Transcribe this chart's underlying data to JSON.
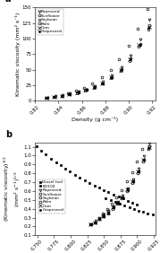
{
  "panel_a": {
    "title": "a",
    "xlabel": "Density (g cm⁻¹)",
    "ylabel": "Kinematic viscosity (mm² s⁻¹)",
    "xlim": [
      0.82,
      0.923
    ],
    "ylim": [
      0,
      150
    ],
    "yticks": [
      0,
      25,
      50,
      75,
      100,
      125,
      150
    ],
    "xticks": [
      0.82,
      0.84,
      0.86,
      0.88,
      0.9,
      0.92
    ],
    "xtick_labels": [
      "0.82",
      "0.84",
      "0.86",
      "0.88",
      "0.90",
      "0.92"
    ],
    "series": [
      {
        "name": "Rapeseed",
        "marker": "v",
        "fillstyle": "none",
        "data_x": [
          0.8305,
          0.837,
          0.8435,
          0.85,
          0.857,
          0.864,
          0.871,
          0.878,
          0.886,
          0.894,
          0.902,
          0.91,
          0.918
        ],
        "data_y": [
          5,
          7,
          9,
          11,
          14,
          18,
          23,
          30,
          40,
          54,
          72,
          98,
          130
        ]
      },
      {
        "name": "Sunflower",
        "marker": "o",
        "fillstyle": "none",
        "data_x": [
          0.8305,
          0.837,
          0.8435,
          0.85,
          0.857,
          0.864,
          0.871,
          0.878,
          0.886,
          0.894,
          0.902,
          0.91,
          0.918
        ],
        "data_y": [
          5,
          6,
          8,
          10,
          13,
          17,
          22,
          28,
          38,
          51,
          68,
          92,
          122
        ]
      },
      {
        "name": "Soybean",
        "marker": "s",
        "fillstyle": "none",
        "data_x": [
          0.8295,
          0.836,
          0.8425,
          0.849,
          0.856,
          0.863,
          0.87,
          0.877,
          0.885,
          0.893,
          0.901,
          0.909,
          0.917
        ],
        "data_y": [
          5,
          6,
          8,
          10,
          12,
          16,
          21,
          27,
          36,
          48,
          64,
          87,
          115
        ]
      },
      {
        "name": "Palm",
        "marker": "o",
        "fillstyle": "none",
        "data_x": [
          0.848,
          0.855,
          0.862,
          0.869,
          0.877,
          0.885,
          0.892,
          0.9,
          0.908,
          0.916
        ],
        "data_y": [
          12,
          16,
          21,
          28,
          37,
          50,
          66,
          88,
          116,
          148
        ]
      },
      {
        "name": "Corn",
        "marker": "x",
        "fillstyle": "none",
        "data_x": [
          0.8295,
          0.836,
          0.8425,
          0.849,
          0.856,
          0.863,
          0.87,
          0.877,
          0.885,
          0.893,
          0.901,
          0.909,
          0.918
        ],
        "data_y": [
          5,
          6,
          8,
          10,
          13,
          17,
          22,
          28,
          38,
          50,
          67,
          90,
          119
        ]
      },
      {
        "name": "Grapeseed",
        "marker": ".",
        "fillstyle": "full",
        "data_x": [
          0.829,
          0.836,
          0.843,
          0.85,
          0.857,
          0.864,
          0.871,
          0.878,
          0.886,
          0.894,
          0.902,
          0.91,
          0.917
        ],
        "data_y": [
          5,
          6,
          8,
          10,
          13,
          17,
          22,
          28,
          37,
          50,
          67,
          90,
          118
        ]
      }
    ]
  },
  "panel_b": {
    "title": "b",
    "xlabel": "Density (g cm⁻¹)",
    "ylabel": "(Kinematic viscosity)¹⁻² (mm² s⁻¹)⁻½",
    "xlim": [
      0.747,
      0.927
    ],
    "ylim": [
      0.1,
      1.15
    ],
    "yticks": [
      0.1,
      0.2,
      0.3,
      0.4,
      0.5,
      0.6,
      0.7,
      0.8,
      0.9,
      1.0,
      1.1
    ],
    "xticks": [
      0.75,
      0.775,
      0.8,
      0.825,
      0.85,
      0.875,
      0.9,
      0.925
    ],
    "xtick_labels": [
      "0.750",
      "0.775",
      "0.800",
      "0.825",
      "0.850",
      "0.875",
      "0.900",
      "0.925"
    ],
    "series": [
      {
        "name": "Diesel fuel",
        "marker": "s",
        "fillstyle": "full",
        "data_x": [
          0.749,
          0.756,
          0.763,
          0.77,
          0.778,
          0.785,
          0.792,
          0.799,
          0.807,
          0.814,
          0.821,
          0.828,
          0.836,
          0.843,
          0.85,
          0.857,
          0.864,
          0.872,
          0.879,
          0.886,
          0.893,
          0.9
        ],
        "data_y": [
          1.105,
          1.058,
          1.012,
          0.968,
          0.928,
          0.889,
          0.853,
          0.818,
          0.785,
          0.753,
          0.722,
          0.692,
          0.664,
          0.636,
          0.61,
          0.585,
          0.56,
          0.537,
          0.514,
          0.492,
          0.471,
          0.451
        ]
      },
      {
        "name": "BD100",
        "marker": "s",
        "fillstyle": "full",
        "data_x": [
          0.853,
          0.86,
          0.867,
          0.874,
          0.881,
          0.888,
          0.895,
          0.902,
          0.909,
          0.916,
          0.923
        ],
        "data_y": [
          0.52,
          0.498,
          0.476,
          0.456,
          0.436,
          0.417,
          0.399,
          0.381,
          0.364,
          0.348,
          0.332
        ]
      },
      {
        "name": "Rapeseed",
        "marker": "v",
        "fillstyle": "none",
        "data_x": [
          0.8305,
          0.837,
          0.8435,
          0.85,
          0.857,
          0.864,
          0.871,
          0.878,
          0.886,
          0.894,
          0.902,
          0.91,
          0.918
        ],
        "data_y": [
          0.224,
          0.265,
          0.3,
          0.332,
          0.374,
          0.424,
          0.48,
          0.548,
          0.632,
          0.735,
          0.849,
          0.99,
          1.14
        ]
      },
      {
        "name": "Sunflower",
        "marker": "o",
        "fillstyle": "none",
        "data_x": [
          0.8305,
          0.837,
          0.8435,
          0.85,
          0.857,
          0.864,
          0.871,
          0.878,
          0.886,
          0.894,
          0.902,
          0.91,
          0.918
        ],
        "data_y": [
          0.224,
          0.245,
          0.283,
          0.316,
          0.361,
          0.412,
          0.469,
          0.529,
          0.616,
          0.714,
          0.825,
          0.959,
          1.105
        ]
      },
      {
        "name": "Soybean",
        "marker": "o",
        "fillstyle": "none",
        "data_x": [
          0.8295,
          0.836,
          0.8425,
          0.849,
          0.856,
          0.863,
          0.87,
          0.877,
          0.885,
          0.893,
          0.901,
          0.909,
          0.917
        ],
        "data_y": [
          0.224,
          0.245,
          0.283,
          0.316,
          0.346,
          0.4,
          0.458,
          0.52,
          0.6,
          0.693,
          0.8,
          0.933,
          1.072
        ]
      },
      {
        "name": "Palm",
        "marker": "o",
        "fillstyle": "none",
        "data_x": [
          0.848,
          0.855,
          0.862,
          0.869,
          0.877,
          0.885,
          0.892,
          0.9,
          0.908,
          0.916
        ],
        "data_y": [
          0.346,
          0.4,
          0.458,
          0.529,
          0.608,
          0.707,
          0.812,
          0.938,
          1.077,
          1.217
        ]
      },
      {
        "name": "Corn",
        "marker": "x",
        "fillstyle": "none",
        "data_x": [
          0.8295,
          0.836,
          0.8425,
          0.849,
          0.856,
          0.863,
          0.87,
          0.877,
          0.885,
          0.893,
          0.901,
          0.909,
          0.918
        ],
        "data_y": [
          0.224,
          0.245,
          0.283,
          0.316,
          0.361,
          0.412,
          0.469,
          0.529,
          0.616,
          0.707,
          0.819,
          0.949,
          1.091
        ]
      },
      {
        "name": "Grapeseed",
        "marker": ".",
        "fillstyle": "full",
        "data_x": [
          0.829,
          0.836,
          0.843,
          0.85,
          0.857,
          0.864,
          0.871,
          0.878,
          0.886,
          0.894,
          0.902,
          0.91,
          0.917
        ],
        "data_y": [
          0.224,
          0.245,
          0.283,
          0.316,
          0.361,
          0.412,
          0.469,
          0.529,
          0.608,
          0.707,
          0.819,
          0.949,
          1.087
        ]
      }
    ]
  },
  "bg_color": "#ffffff",
  "marker_size": 2.0,
  "tick_fontsize": 4.0,
  "label_fontsize": 4.5,
  "legend_fontsize": 3.2,
  "panel_label_fontsize": 7.0
}
